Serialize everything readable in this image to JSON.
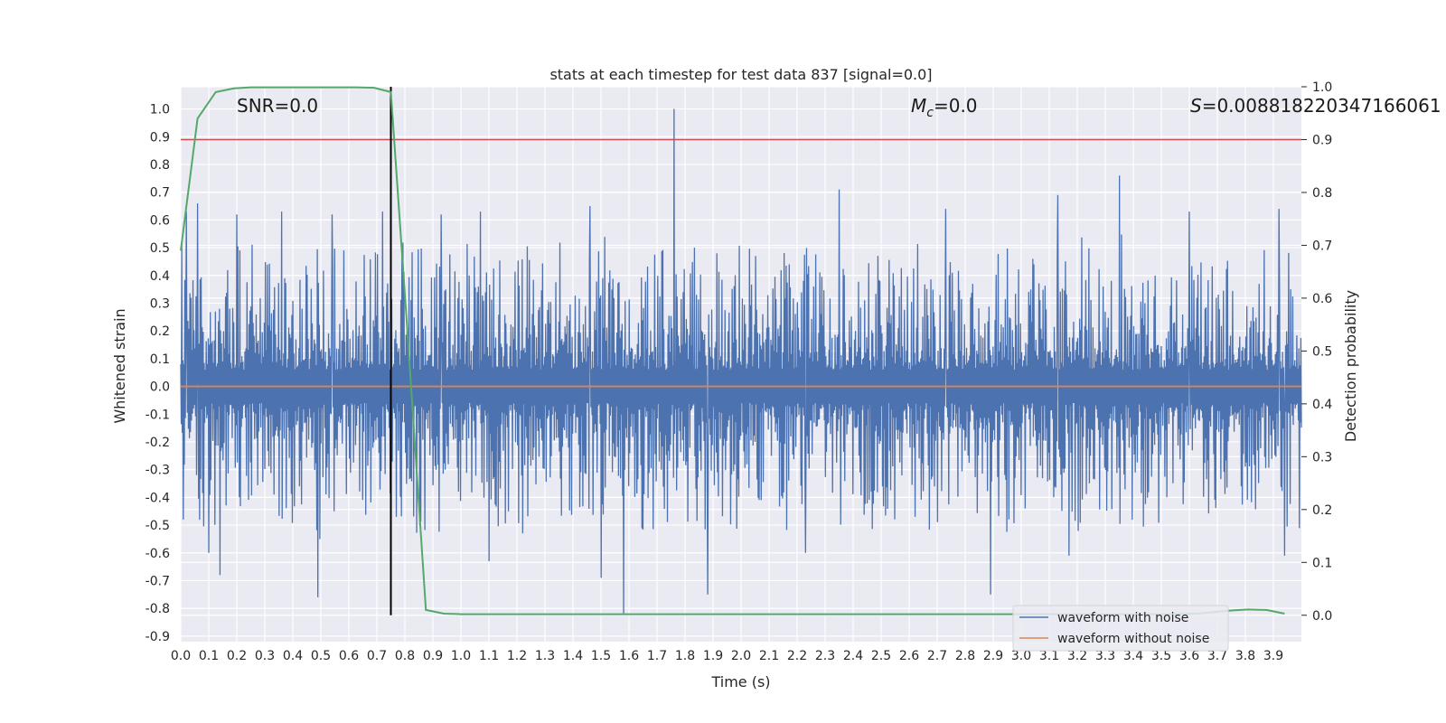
{
  "chart_data": {
    "type": "line",
    "title": "stats at each timestep for test data 837 [signal=0.0]",
    "xlabel": "Time (s)",
    "ylabel": "Whitened strain",
    "ylabel_right": "Detection probability",
    "xlim": [
      0.0,
      4.0
    ],
    "ylim": [
      -0.92,
      1.08
    ],
    "ylim_right": [
      -0.05,
      1.0
    ],
    "x_ticks": [
      "0.0",
      "0.1",
      "0.2",
      "0.3",
      "0.4",
      "0.5",
      "0.6",
      "0.7",
      "0.8",
      "0.9",
      "1.0",
      "1.1",
      "1.2",
      "1.3",
      "1.4",
      "1.5",
      "1.6",
      "1.7",
      "1.8",
      "1.9",
      "2.0",
      "2.1",
      "2.2",
      "2.3",
      "2.4",
      "2.5",
      "2.6",
      "2.7",
      "2.8",
      "2.9",
      "3.0",
      "3.1",
      "3.2",
      "3.3",
      "3.4",
      "3.5",
      "3.6",
      "3.7",
      "3.8",
      "3.9"
    ],
    "y_ticks": [
      "-0.9",
      "-0.8",
      "-0.7",
      "-0.6",
      "-0.5",
      "-0.4",
      "-0.3",
      "-0.2",
      "-0.1",
      "0.0",
      "0.1",
      "0.2",
      "0.3",
      "0.4",
      "0.5",
      "0.6",
      "0.7",
      "0.8",
      "0.9",
      "1.0"
    ],
    "y_ticks_right": [
      "0.0",
      "0.1",
      "0.2",
      "0.3",
      "0.4",
      "0.5",
      "0.6",
      "0.7",
      "0.8",
      "0.9",
      "1.0"
    ],
    "grid": true,
    "annotations": {
      "snr": "SNR=0.0",
      "mc_symbol": "M",
      "mc_sub": "c",
      "mc_value": "=0.0",
      "s_symbol": "S",
      "s_value": "=0.008818220347166061"
    },
    "legend": {
      "position": "lower right",
      "entries": [
        "waveform with noise",
        "waveform without noise"
      ]
    },
    "threshold": {
      "axis": "right",
      "value": 0.9,
      "color": "#c44e52"
    },
    "marker_time": 0.75,
    "series": [
      {
        "name": "waveform with noise",
        "axis": "left",
        "color": "#4c72b0",
        "kind": "noise-envelope",
        "max_peaks": [
          {
            "x": 0.02,
            "y": 0.63
          },
          {
            "x": 0.06,
            "y": 0.66
          },
          {
            "x": 0.1,
            "y": 0.6
          },
          {
            "x": 0.2,
            "y": 0.62
          },
          {
            "x": 0.36,
            "y": 0.63
          },
          {
            "x": 0.54,
            "y": 0.62
          },
          {
            "x": 0.72,
            "y": 0.63
          },
          {
            "x": 0.77,
            "y": 0.66
          },
          {
            "x": 0.93,
            "y": 0.62
          },
          {
            "x": 1.07,
            "y": 0.63
          },
          {
            "x": 1.46,
            "y": 0.65
          },
          {
            "x": 1.76,
            "y": 1.0
          },
          {
            "x": 2.35,
            "y": 0.71
          },
          {
            "x": 2.73,
            "y": 0.64
          },
          {
            "x": 3.13,
            "y": 0.69
          },
          {
            "x": 3.35,
            "y": 0.76
          },
          {
            "x": 3.6,
            "y": 0.63
          },
          {
            "x": 3.92,
            "y": 0.64
          }
        ],
        "min_peaks": [
          {
            "x": 0.01,
            "y": -0.48
          },
          {
            "x": 0.1,
            "y": -0.6
          },
          {
            "x": 0.14,
            "y": -0.68
          },
          {
            "x": 0.49,
            "y": -0.76
          },
          {
            "x": 0.77,
            "y": -0.47
          },
          {
            "x": 1.1,
            "y": -0.63
          },
          {
            "x": 1.5,
            "y": -0.69
          },
          {
            "x": 1.58,
            "y": -0.82
          },
          {
            "x": 1.88,
            "y": -0.75
          },
          {
            "x": 2.23,
            "y": -0.6
          },
          {
            "x": 2.89,
            "y": -0.75
          },
          {
            "x": 3.17,
            "y": -0.61
          },
          {
            "x": 3.94,
            "y": -0.61
          }
        ]
      },
      {
        "name": "waveform without noise",
        "axis": "left",
        "color": "#dd8452",
        "x": [
          0.0,
          4.0
        ],
        "y": [
          0.0,
          0.0
        ]
      },
      {
        "axis": "right",
        "color": "#55a868",
        "x": [
          0.0,
          0.06,
          0.125,
          0.19,
          0.25,
          0.31,
          0.375,
          0.44,
          0.5,
          0.56,
          0.625,
          0.69,
          0.75,
          0.81,
          0.875,
          0.94,
          1.0,
          1.06,
          1.25,
          1.5,
          2.0,
          2.5,
          3.0,
          3.25,
          3.5,
          3.625,
          3.69,
          3.75,
          3.81,
          3.875,
          3.94
        ],
        "y": [
          0.69,
          0.94,
          0.99,
          0.997,
          0.999,
          0.999,
          0.999,
          0.999,
          0.999,
          0.999,
          0.999,
          0.998,
          0.99,
          0.53,
          0.01,
          0.003,
          0.002,
          0.002,
          0.002,
          0.002,
          0.002,
          0.002,
          0.002,
          0.002,
          0.002,
          0.003,
          0.006,
          0.009,
          0.011,
          0.01,
          0.003
        ]
      }
    ]
  }
}
